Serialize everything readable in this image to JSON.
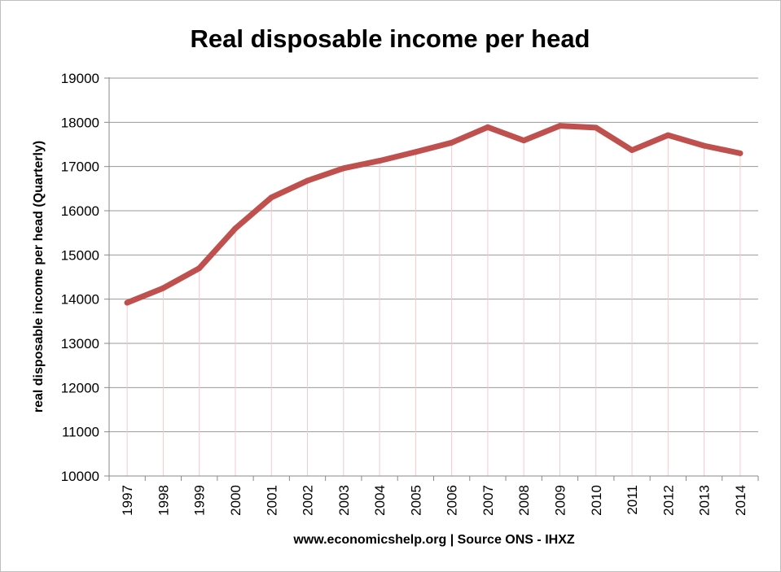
{
  "chart_data": {
    "type": "line",
    "title": "Real disposable income per head",
    "xlabel": "www.economicshelp.org | Source ONS - IHXZ",
    "ylabel": "real disposable income per head (Quarterly)",
    "categories": [
      "1997",
      "1998",
      "1999",
      "2000",
      "2001",
      "2002",
      "2003",
      "2004",
      "2005",
      "2006",
      "2007",
      "2008",
      "2009",
      "2010",
      "2011",
      "2012",
      "2013",
      "2014"
    ],
    "series": [
      {
        "values": [
          13920,
          14250,
          14700,
          15600,
          16300,
          16680,
          16960,
          17130,
          17330,
          17540,
          17890,
          17590,
          17920,
          17880,
          17370,
          17710,
          17470,
          17300
        ],
        "color": "#c0504d"
      }
    ],
    "ylim": [
      10000,
      19000
    ],
    "yticks": [
      10000,
      11000,
      12000,
      13000,
      14000,
      15000,
      16000,
      17000,
      18000,
      19000
    ],
    "grid": true,
    "legend": "none"
  }
}
